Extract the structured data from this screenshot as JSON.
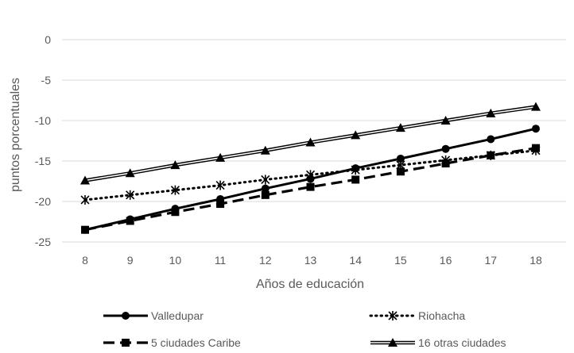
{
  "chart_data": {
    "type": "line",
    "title": "",
    "xlabel": "Años de educación",
    "ylabel": "puntos porcentuales",
    "x": [
      8,
      9,
      10,
      11,
      12,
      13,
      14,
      15,
      16,
      17,
      18
    ],
    "ylim": [
      -25,
      0
    ],
    "yticks": [
      0,
      -5,
      -10,
      -15,
      -20,
      -25
    ],
    "grid": "horizontal",
    "legend_placement": "bottom",
    "series": [
      {
        "name": "Valledupar",
        "style": "solid-circle",
        "color": "#000000",
        "values": [
          -23.5,
          -22.2,
          -20.9,
          -19.7,
          -18.4,
          -17.2,
          -15.9,
          -14.7,
          -13.5,
          -12.3,
          -11.0
        ]
      },
      {
        "name": "Riohacha",
        "style": "dotted-asterisk",
        "color": "#000000",
        "values": [
          -19.8,
          -19.2,
          -18.6,
          -18.0,
          -17.3,
          -16.7,
          -16.1,
          -15.5,
          -14.9,
          -14.3,
          -13.7
        ]
      },
      {
        "name": "5 ciudades Caribe",
        "style": "dashed-square",
        "color": "#000000",
        "values": [
          -23.5,
          -22.4,
          -21.3,
          -20.3,
          -19.2,
          -18.2,
          -17.3,
          -16.3,
          -15.3,
          -14.3,
          -13.4
        ]
      },
      {
        "name": "16 otras ciudades",
        "style": "double-triangle",
        "color": "#000000",
        "values": [
          -17.4,
          -16.5,
          -15.5,
          -14.6,
          -13.7,
          -12.7,
          -11.8,
          -10.9,
          -10.0,
          -9.1,
          -8.3
        ]
      }
    ]
  }
}
